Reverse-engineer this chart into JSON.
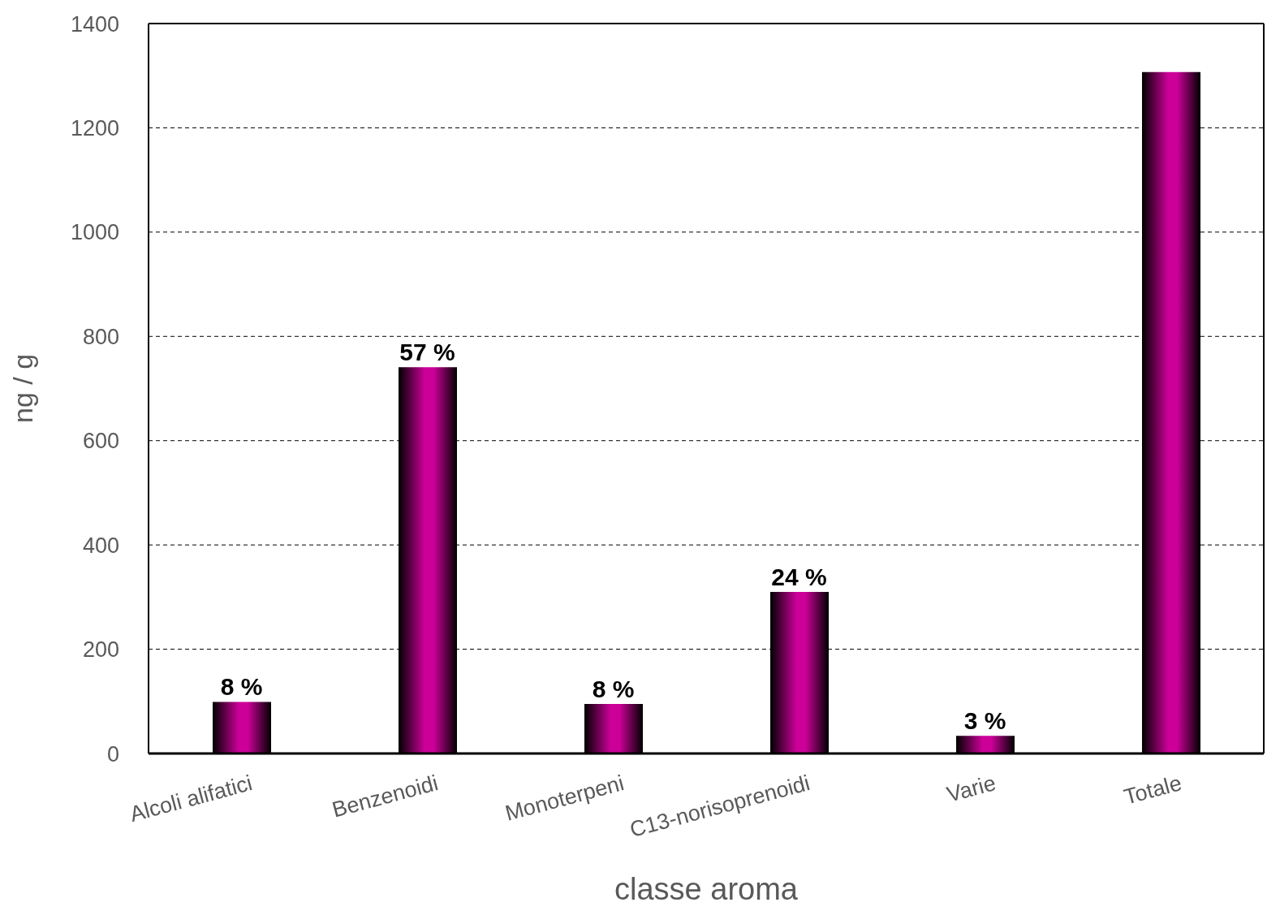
{
  "chart_data": {
    "type": "bar",
    "xlabel": "classe aroma",
    "ylabel": "ng / g",
    "categories": [
      "Alcoli alifatici",
      "Benzenoidi",
      "Monoterpeni",
      "C13-norisoprenoidi",
      "Varie",
      "Totale"
    ],
    "values": [
      99,
      741,
      95,
      310,
      34,
      1307
    ],
    "annotations": [
      {
        "text": "8 %",
        "x": "Alcoli alifatici",
        "y": 99
      },
      {
        "text": "57 %",
        "x": "Benzenoidi",
        "y": 741
      },
      {
        "text": "8 %",
        "x": "Monoterpeni",
        "y": 95
      },
      {
        "text": "24 %",
        "x": "C13-norisoprenoidi",
        "y": 310
      },
      {
        "text": "3 %",
        "x": "Varie",
        "y": 34
      }
    ],
    "color": "#cc0099",
    "ylim": [
      0,
      1400
    ],
    "yticks": [
      0,
      200,
      400,
      600,
      800,
      1000,
      1200,
      1400
    ],
    "grid": "y"
  }
}
